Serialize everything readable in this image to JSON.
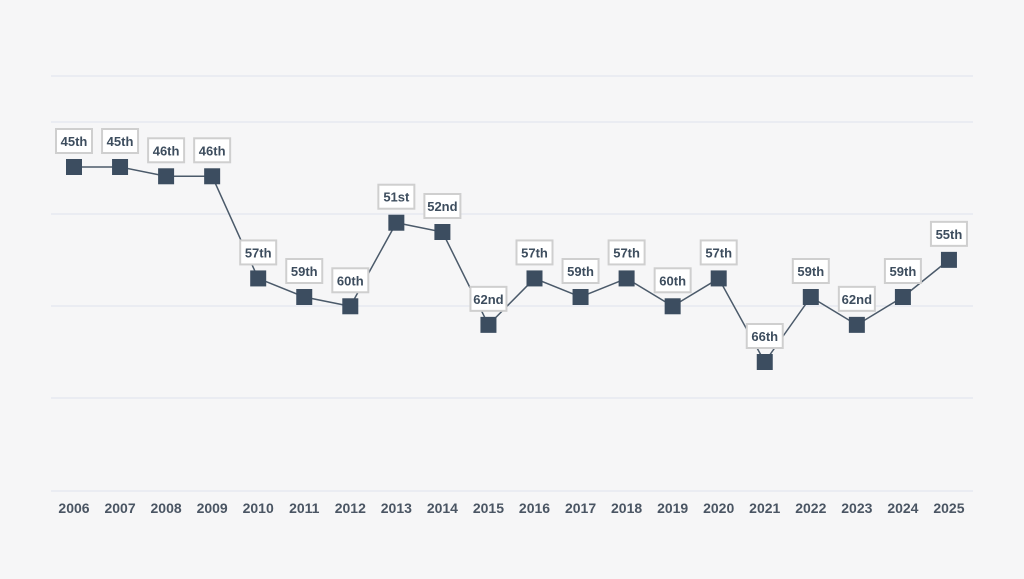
{
  "chart_data": {
    "type": "line",
    "title": "",
    "xlabel": "",
    "ylabel": "",
    "categories": [
      "2006",
      "2007",
      "2008",
      "2009",
      "2010",
      "2011",
      "2012",
      "2013",
      "2014",
      "2015",
      "2016",
      "2017",
      "2018",
      "2019",
      "2020",
      "2021",
      "2022",
      "2023",
      "2024",
      "2025"
    ],
    "values": [
      45,
      45,
      46,
      46,
      57,
      59,
      60,
      51,
      52,
      62,
      57,
      59,
      57,
      60,
      57,
      66,
      59,
      62,
      59,
      55
    ],
    "labels": [
      "45th",
      "45th",
      "46th",
      "46th",
      "57th",
      "59th",
      "60th",
      "51st",
      "52nd",
      "62nd",
      "57th",
      "59th",
      "57th",
      "60th",
      "57th",
      "66th",
      "59th",
      "62nd",
      "59th",
      "55th"
    ],
    "y_axis": "inverted rank (lower rank shown higher)",
    "grid": "horizontal",
    "legend": "none",
    "colors": {
      "line": "#4b5a6a",
      "marker": "#3c4d60",
      "grid": "#dfe3ee",
      "label_border": "#cfcfcf",
      "background": "#f6f6f7"
    }
  }
}
